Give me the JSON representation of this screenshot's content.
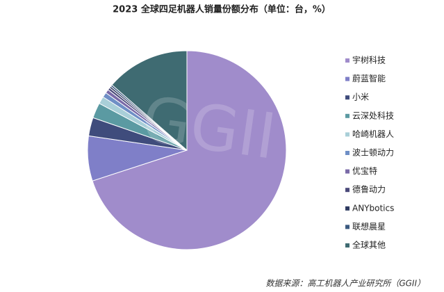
{
  "chart_data": {
    "type": "pie",
    "title": "2023 全球四足机器人销量份额分布（单位：台，%）",
    "categories": [
      "宇树科技",
      "蔚蓝智能",
      "小米",
      "云深处科技",
      "哈崎机器人",
      "波士顿动力",
      "优宝特",
      "德鲁动力",
      "ANYbotics",
      "联想晨星",
      "全球其他"
    ],
    "values": [
      70,
      7.3,
      3,
      2.5,
      1.2,
      0.8,
      0.6,
      0.4,
      0.3,
      0.3,
      13.6
    ],
    "colors": [
      "#a08ccb",
      "#7f7fc8",
      "#3f4c7c",
      "#5b9aa2",
      "#a9cfd8",
      "#6f8fc6",
      "#7a6aa8",
      "#4b4a7a",
      "#2e3a60",
      "#3b5a80",
      "#3f6b72"
    ],
    "legend": "right",
    "watermark": "GGII",
    "source": "数据来源：高工机器人产业研究所（GGII）"
  }
}
